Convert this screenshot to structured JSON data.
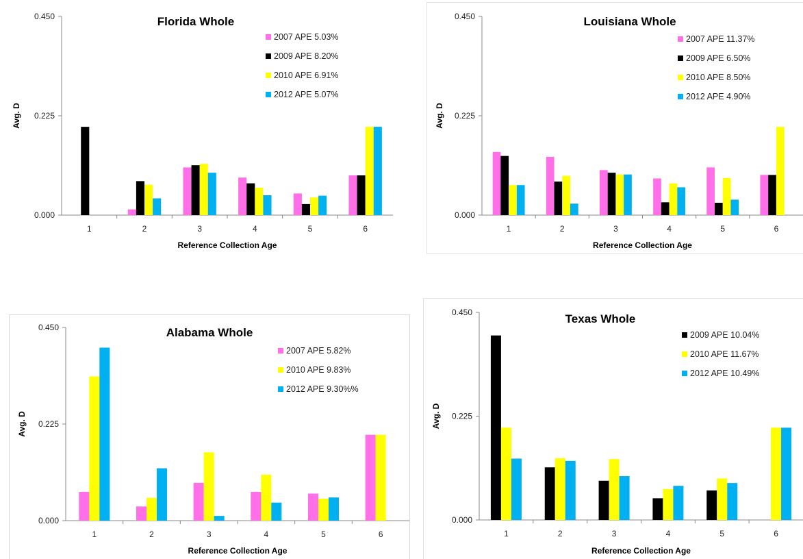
{
  "colors": {
    "2007": "#FF6FE8",
    "2009": "#000000",
    "2010": "#FFFF00",
    "2012": "#00B0F0"
  },
  "chart_data": [
    {
      "type": "bar",
      "title": "Florida Whole",
      "xlabel": "Reference Collection Age",
      "ylabel": "Avg. D",
      "ylim": [
        0,
        0.45
      ],
      "yticks": [
        "0.000",
        "0.225",
        "0.450"
      ],
      "categories": [
        "1",
        "2",
        "3",
        "4",
        "5",
        "6"
      ],
      "legend_position": "top-right",
      "series": [
        {
          "name": "2007 APE 5.03%",
          "key": "2007",
          "values": [
            0,
            0.013,
            0.108,
            0.085,
            0.049,
            0.09
          ]
        },
        {
          "name": "2009 APE 8.20%",
          "key": "2009",
          "values": [
            0.2,
            0.077,
            0.113,
            0.072,
            0.025,
            0.09
          ]
        },
        {
          "name": "2010 APE 6.91%",
          "key": "2010",
          "values": [
            0,
            0.069,
            0.116,
            0.062,
            0.04,
            0.2
          ]
        },
        {
          "name": "2012 APE 5.07%",
          "key": "2012",
          "values": [
            0,
            0.038,
            0.096,
            0.045,
            0.044,
            0.2
          ]
        }
      ]
    },
    {
      "type": "bar",
      "title": "Louisiana Whole",
      "xlabel": "Reference Collection Age",
      "ylabel": "Avg. D",
      "ylim": [
        0,
        0.45
      ],
      "yticks": [
        "0.000",
        "0.225",
        "0.450"
      ],
      "categories": [
        "1",
        "2",
        "3",
        "4",
        "5",
        "6"
      ],
      "legend_position": "top-right",
      "series": [
        {
          "name": "2007 APE 11.37%",
          "key": "2007",
          "values": [
            0.143,
            0.132,
            0.102,
            0.083,
            0.108,
            0.091
          ]
        },
        {
          "name": "2009 APE 6.50%",
          "key": "2009",
          "values": [
            0.134,
            0.076,
            0.096,
            0.029,
            0.028,
            0.091
          ]
        },
        {
          "name": "2010 APE 8.50%",
          "key": "2010",
          "values": [
            0.068,
            0.089,
            0.092,
            0.072,
            0.084,
            0.2
          ]
        },
        {
          "name": "2012 APE 4.90%",
          "key": "2012",
          "values": [
            0.068,
            0.026,
            0.092,
            0.063,
            0.035,
            0
          ]
        }
      ]
    },
    {
      "type": "bar",
      "title": "Alabama Whole",
      "xlabel": "Reference Collection Age",
      "ylabel": "Avg. D",
      "ylim": [
        0,
        0.45
      ],
      "yticks": [
        "0.000",
        "0.225",
        "0.450"
      ],
      "categories": [
        "1",
        "2",
        "3",
        "4",
        "5",
        "6"
      ],
      "legend_position": "top-right",
      "series": [
        {
          "name": "2007 APE 5.82%",
          "key": "2007",
          "values": [
            0.067,
            0.033,
            0.088,
            0.067,
            0.063,
            0.2
          ]
        },
        {
          "name": "2010 APE 9.83%",
          "key": "2010",
          "values": [
            0.336,
            0.053,
            0.159,
            0.107,
            0.051,
            0.2
          ]
        },
        {
          "name": "2012 APE 9.30%%",
          "key": "2012",
          "values": [
            0.403,
            0.122,
            0.011,
            0.042,
            0.054,
            0
          ]
        }
      ]
    },
    {
      "type": "bar",
      "title": "Texas Whole",
      "xlabel": "Reference Collection Age",
      "ylabel": "Avg. D",
      "ylim": [
        0,
        0.45
      ],
      "yticks": [
        "0.000",
        "0.225",
        "0.450"
      ],
      "categories": [
        "1",
        "2",
        "3",
        "4",
        "5",
        "6"
      ],
      "legend_position": "top-right",
      "series": [
        {
          "name": "2009 APE 10.04%",
          "key": "2009",
          "values": [
            0.4,
            0.114,
            0.085,
            0.047,
            0.064,
            0
          ]
        },
        {
          "name": "2010 APE 11.67%",
          "key": "2010",
          "values": [
            0.2,
            0.134,
            0.132,
            0.067,
            0.09,
            0.2
          ]
        },
        {
          "name": "2012 APE 10.49%",
          "key": "2012",
          "values": [
            0.133,
            0.128,
            0.095,
            0.074,
            0.08,
            0.2
          ]
        }
      ]
    }
  ]
}
